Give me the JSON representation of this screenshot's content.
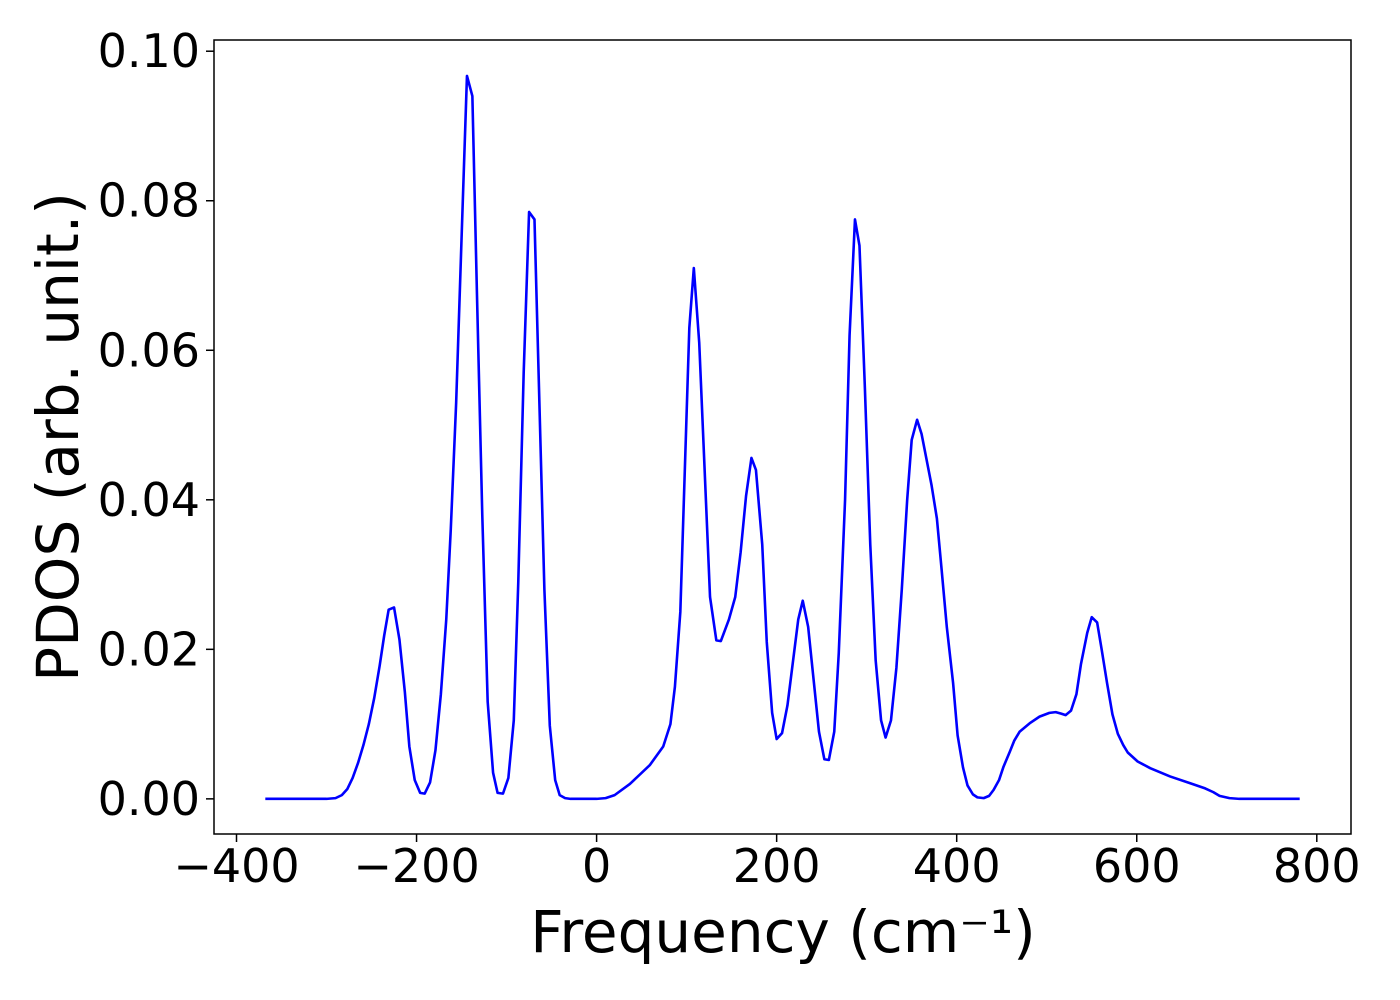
{
  "chart_data": {
    "type": "line",
    "xlabel": "Frequency (cm⁻¹)",
    "ylabel": "PDOS (arb. unit.)",
    "x": [
      -368,
      -300,
      -290,
      -283,
      -277,
      -271,
      -265,
      -259,
      -253,
      -247,
      -241,
      -236,
      -231,
      -225,
      -219,
      -213,
      -208,
      -202,
      -196,
      -191,
      -185,
      -179,
      -173,
      -167,
      -162,
      -156,
      -150,
      -144,
      -138,
      -133,
      -127,
      -121,
      -115,
      -110,
      -104,
      -98,
      -92,
      -87,
      -81,
      -75,
      -69,
      -64,
      -58,
      -52,
      -46,
      -41,
      -35,
      -29,
      0,
      10,
      20,
      37,
      59,
      74,
      82,
      87,
      93,
      103,
      108,
      114,
      126,
      133,
      138,
      147,
      154,
      160,
      166,
      172,
      177,
      184,
      189,
      195,
      200,
      206,
      212,
      224,
      229,
      235,
      241,
      247,
      253,
      258,
      264,
      269,
      276,
      281,
      287,
      292,
      298,
      304,
      310,
      316,
      321,
      327,
      333,
      339,
      345,
      350,
      356,
      361,
      372,
      378,
      383,
      389,
      396,
      401,
      407,
      412,
      418,
      423,
      430,
      436,
      441,
      447,
      452,
      459,
      464,
      470,
      481,
      492,
      503,
      510,
      516,
      521,
      527,
      533,
      538,
      545,
      550,
      556,
      561,
      567,
      573,
      579,
      585,
      590,
      601,
      615,
      637,
      659,
      676,
      685,
      692,
      703,
      714,
      781
    ],
    "series": [
      {
        "color": "#0000ff",
        "values": [
          0,
          0,
          0.0001,
          0.0005,
          0.0013,
          0.0028,
          0.0048,
          0.0072,
          0.01,
          0.0135,
          0.0178,
          0.0218,
          0.0253,
          0.0256,
          0.0213,
          0.0143,
          0.007,
          0.0025,
          0.0008,
          0.0007,
          0.0022,
          0.0065,
          0.014,
          0.024,
          0.036,
          0.053,
          0.075,
          0.0967,
          0.094,
          0.068,
          0.038,
          0.013,
          0.0035,
          0.0008,
          0.0007,
          0.0028,
          0.0105,
          0.029,
          0.057,
          0.0785,
          0.0775,
          0.055,
          0.028,
          0.0098,
          0.0025,
          0.0005,
          0.0001,
          0,
          0,
          0.0001,
          0.0005,
          0.002,
          0.0045,
          0.007,
          0.01,
          0.015,
          0.025,
          0.063,
          0.071,
          0.061,
          0.027,
          0.0212,
          0.0211,
          0.024,
          0.027,
          0.033,
          0.0405,
          0.0456,
          0.044,
          0.034,
          0.021,
          0.0115,
          0.008,
          0.0088,
          0.0125,
          0.024,
          0.0265,
          0.023,
          0.016,
          0.009,
          0.0053,
          0.0052,
          0.009,
          0.0195,
          0.04,
          0.062,
          0.0775,
          0.074,
          0.055,
          0.034,
          0.0185,
          0.0105,
          0.0082,
          0.0105,
          0.0175,
          0.028,
          0.04,
          0.048,
          0.0507,
          0.0488,
          0.042,
          0.0375,
          0.031,
          0.023,
          0.0155,
          0.0085,
          0.0042,
          0.0018,
          0.0006,
          0.0002,
          0.0001,
          0.0004,
          0.0012,
          0.0025,
          0.0043,
          0.0063,
          0.0078,
          0.009,
          0.0101,
          0.011,
          0.0115,
          0.0116,
          0.0114,
          0.0112,
          0.0118,
          0.014,
          0.018,
          0.0222,
          0.0243,
          0.0236,
          0.02,
          0.0155,
          0.0113,
          0.0087,
          0.0072,
          0.0062,
          0.005,
          0.0041,
          0.003,
          0.0021,
          0.0014,
          0.0009,
          0.0004,
          0.0001,
          0,
          0
        ]
      }
    ],
    "xlim": [
      -425,
      838
    ],
    "ylim": [
      -0.0047,
      0.1015
    ],
    "xticks": [
      {
        "value": -400,
        "label": "−400"
      },
      {
        "value": -200,
        "label": "−200"
      },
      0,
      200,
      400,
      600,
      800
    ],
    "yticks": [
      {
        "value": 0,
        "label": "0.00"
      },
      {
        "value": 0.02,
        "label": "0.02"
      },
      {
        "value": 0.04,
        "label": "0.04"
      },
      {
        "value": 0.06,
        "label": "0.06"
      },
      {
        "value": 0.08,
        "label": "0.08"
      },
      {
        "value": 0.1,
        "label": "0.10"
      }
    ]
  }
}
